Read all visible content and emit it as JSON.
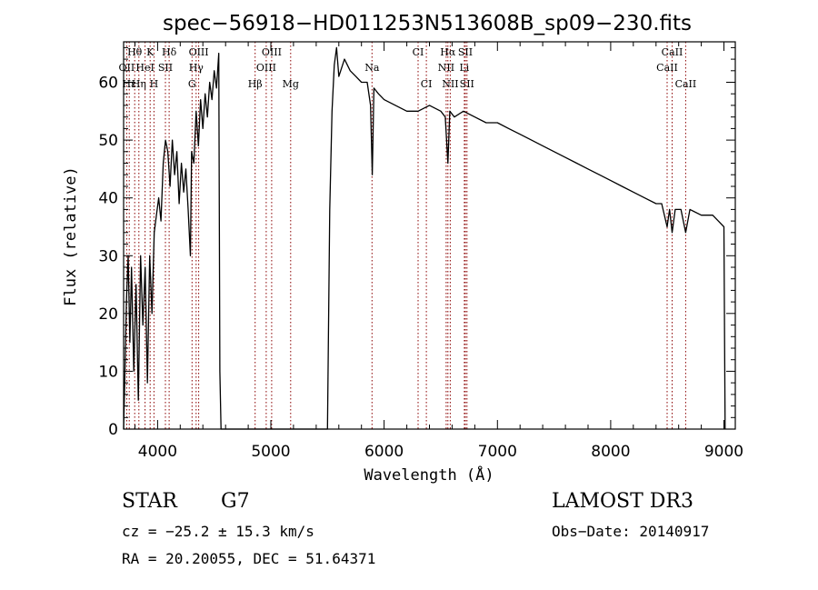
{
  "chart_data": {
    "type": "line",
    "title": "spec−56918−HD011253N513608B_sp09−230.fits",
    "xlabel": "Wavelength (Å)",
    "ylabel": "Flux (relative)",
    "xlim": [
      3700,
      9100
    ],
    "ylim": [
      0,
      67
    ],
    "xticks": [
      4000,
      5000,
      6000,
      7000,
      8000,
      9000
    ],
    "yticks": [
      0,
      10,
      20,
      30,
      40,
      50,
      60
    ],
    "grid": false,
    "line_color": "#000000",
    "marker_color": "#8b0000",
    "series": [
      {
        "x": [
          3700,
          3710,
          3725,
          3740,
          3755,
          3770,
          3790,
          3810,
          3830,
          3850,
          3870,
          3890,
          3910,
          3930,
          3950,
          3970,
          3990,
          4010,
          4030,
          4050,
          4070,
          4090,
          4110,
          4130,
          4150,
          4170,
          4190,
          4210,
          4230,
          4250,
          4270,
          4290,
          4300,
          4320,
          4340,
          4360,
          4380,
          4400,
          4420,
          4440,
          4460,
          4480,
          4500,
          4520,
          4540,
          4550,
          4560,
          5500,
          5520,
          5540,
          5560,
          5580,
          5600,
          5650,
          5700,
          5750,
          5800,
          5850,
          5880,
          5895,
          5910,
          5950,
          6000,
          6100,
          6200,
          6300,
          6400,
          6500,
          6540,
          6563,
          6580,
          6620,
          6700,
          6800,
          6900,
          7000,
          7100,
          7200,
          7300,
          7400,
          7500,
          7600,
          7700,
          7800,
          7900,
          8000,
          8100,
          8200,
          8300,
          8400,
          8450,
          8498,
          8520,
          8542,
          8570,
          8620,
          8662,
          8700,
          8800,
          8900,
          8950,
          9000,
          9010
        ],
        "y": [
          0,
          8,
          22,
          30,
          15,
          28,
          10,
          25,
          5,
          30,
          18,
          28,
          8,
          30,
          20,
          34,
          37,
          40,
          36,
          46,
          50,
          48,
          42,
          50,
          44,
          48,
          39,
          46,
          41,
          45,
          38,
          30,
          48,
          46,
          55,
          49,
          57,
          52,
          58,
          54,
          60,
          57,
          62,
          59,
          65,
          10,
          0,
          0,
          38,
          55,
          63,
          66,
          61,
          64,
          62,
          61,
          60,
          60,
          56,
          44,
          59,
          58,
          57,
          56,
          55,
          55,
          56,
          55,
          54,
          46,
          55,
          54,
          55,
          54,
          53,
          53,
          52,
          51,
          50,
          49,
          48,
          47,
          46,
          45,
          44,
          43,
          42,
          41,
          40,
          39,
          39,
          35,
          38,
          34,
          38,
          38,
          34,
          38,
          37,
          37,
          36,
          35,
          0
        ]
      }
    ],
    "lines": [
      {
        "label": "Hθ",
        "wl": 3798,
        "row": 0
      },
      {
        "label": "K",
        "wl": 3934,
        "row": 0
      },
      {
        "label": "Hδ",
        "wl": 4102,
        "row": 0
      },
      {
        "label": "OIII",
        "wl": 4363,
        "row": 0
      },
      {
        "label": "OIII",
        "wl": 5007,
        "row": 0
      },
      {
        "label": "CI",
        "wl": 6300,
        "row": 0
      },
      {
        "label": "Hα",
        "wl": 6563,
        "row": 0
      },
      {
        "label": "SII",
        "wl": 6717,
        "row": 0
      },
      {
        "label": "CaII",
        "wl": 8542,
        "row": 0
      },
      {
        "label": "OII",
        "wl": 3727,
        "row": 1
      },
      {
        "label": "HeI",
        "wl": 3889,
        "row": 1
      },
      {
        "label": "SII",
        "wl": 4069,
        "row": 1
      },
      {
        "label": "Hγ",
        "wl": 4340,
        "row": 1
      },
      {
        "label": "OIII",
        "wl": 4959,
        "row": 1
      },
      {
        "label": "Na",
        "wl": 5893,
        "row": 1
      },
      {
        "label": "NII",
        "wl": 6548,
        "row": 1
      },
      {
        "label": "Li",
        "wl": 6708,
        "row": 1
      },
      {
        "label": "CaII",
        "wl": 8498,
        "row": 1
      },
      {
        "label": "Hε",
        "wl": 3750,
        "row": 2
      },
      {
        "label": "Hη",
        "wl": 3835,
        "row": 2
      },
      {
        "label": "H",
        "wl": 3968,
        "row": 2
      },
      {
        "label": "G",
        "wl": 4304,
        "row": 2
      },
      {
        "label": "Hβ",
        "wl": 4861,
        "row": 2
      },
      {
        "label": "Mg",
        "wl": 5175,
        "row": 2
      },
      {
        "label": "CI",
        "wl": 6373,
        "row": 2
      },
      {
        "label": "NII",
        "wl": 6584,
        "row": 2
      },
      {
        "label": "SII",
        "wl": 6731,
        "row": 2
      },
      {
        "label": "CaII",
        "wl": 8662,
        "row": 2
      }
    ]
  },
  "info": {
    "object_type": "STAR",
    "subclass": "G7",
    "survey": "LAMOST DR3",
    "cz": "cz = −25.2 ± 15.3 km/s",
    "obs_date": "Obs−Date: 20140917",
    "coords": "RA =  20.20055, DEC =  51.64371"
  }
}
